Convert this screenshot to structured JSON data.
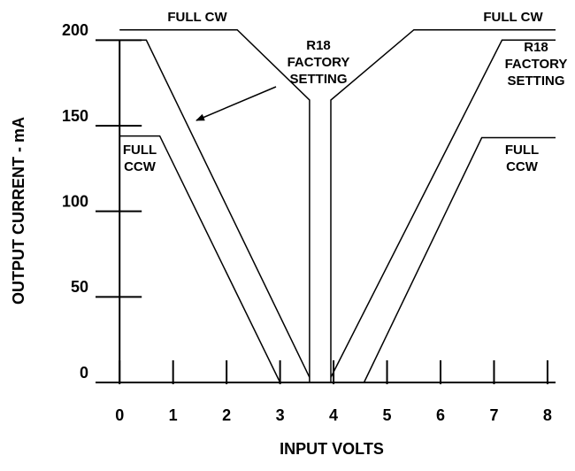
{
  "chart_data": {
    "type": "line",
    "x_label": "INPUT VOLTS",
    "y_label": "OUTPUT CURRENT - mA",
    "xlim": [
      -0.45,
      8.15
    ],
    "ylim": [
      0,
      210
    ],
    "xticks": [
      0,
      1,
      2,
      3,
      4,
      5,
      6,
      7,
      8
    ],
    "yticks": [
      0,
      50,
      100,
      150,
      200
    ],
    "series": [
      {
        "color": "#000000",
        "x": [
          0,
          2.2,
          3.55,
          3.55
        ],
        "values": [
          206,
          206,
          165,
          0
        ]
      },
      {
        "color": "#000000",
        "x": [
          0,
          0.5,
          3.55
        ],
        "values": [
          200,
          200,
          3
        ]
      },
      {
        "color": "#000000",
        "x": [
          0,
          0.75,
          3.0
        ],
        "values": [
          144,
          144,
          0
        ]
      },
      {
        "color": "#000000",
        "x": [
          3.95,
          3.95,
          5.5,
          8.15
        ],
        "values": [
          0,
          165,
          206,
          206
        ]
      },
      {
        "color": "#000000",
        "x": [
          3.95,
          7.15,
          8.15
        ],
        "values": [
          3,
          200,
          200
        ]
      },
      {
        "color": "#000000",
        "x": [
          4.57,
          6.77,
          8.15
        ],
        "values": [
          0,
          143,
          143
        ]
      }
    ],
    "annotations": [
      {
        "lines": [
          "FULL CW"
        ]
      },
      {
        "lines": [
          "FULL CW"
        ]
      },
      {
        "lines": [
          "R18",
          "FACTORY",
          "SETTING"
        ]
      },
      {
        "lines": [
          "R18",
          "FACTORY",
          "SETTING"
        ]
      },
      {
        "lines": [
          "FULL",
          "CCW"
        ]
      },
      {
        "lines": [
          "FULL",
          "CCW"
        ]
      }
    ]
  }
}
